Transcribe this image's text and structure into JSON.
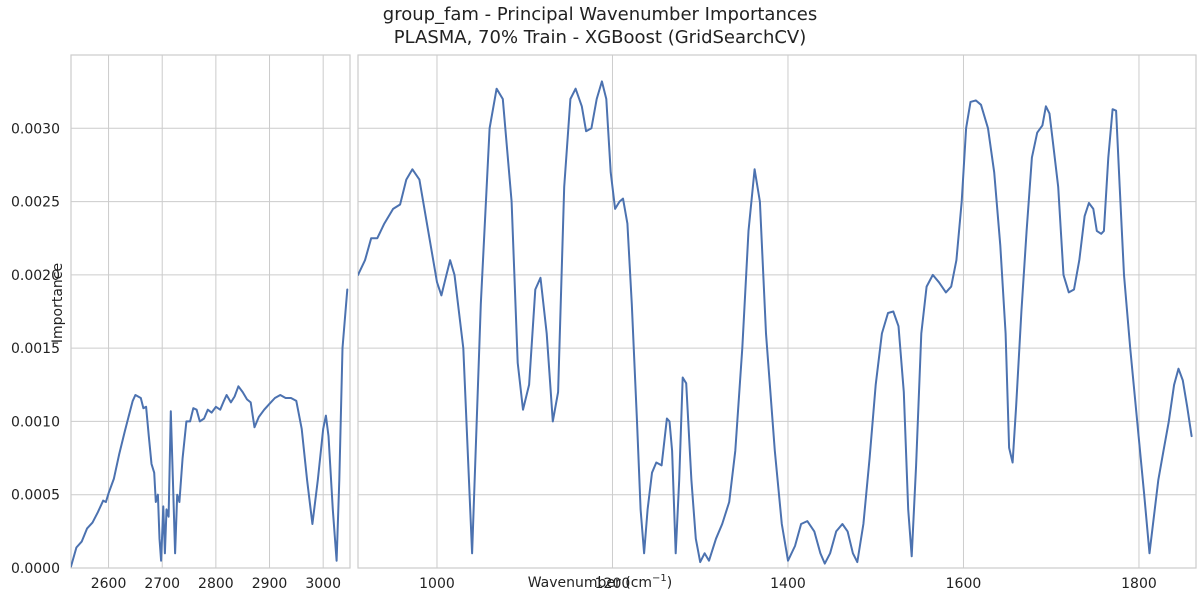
{
  "chart_data": {
    "type": "line",
    "title": "group_fam - Principal Wavenumber Importances",
    "subtitle": "PLASMA, 70% Train - XGBoost (GridSearchCV)",
    "xlabel": "Wavenumber (cm",
    "xlabel_sup": "−1",
    "xlabel_close": ")",
    "ylabel": "Importance",
    "ylim": [
      0,
      0.0035
    ],
    "y_ticks": [
      "0.0000",
      "0.0005",
      "0.0010",
      "0.0015",
      "0.0020",
      "0.0025",
      "0.0030"
    ],
    "grid": true,
    "line_color": "#4c72b0",
    "panels": [
      {
        "xlim": [
          2530,
          3050
        ],
        "x_ticks": [
          2600,
          2700,
          2800,
          2900,
          3000
        ],
        "points": [
          [
            2530,
            1e-05
          ],
          [
            2540,
            0.00014
          ],
          [
            2550,
            0.00018
          ],
          [
            2560,
            0.00027
          ],
          [
            2570,
            0.00031
          ],
          [
            2580,
            0.00038
          ],
          [
            2590,
            0.00046
          ],
          [
            2595,
            0.00045
          ],
          [
            2600,
            0.00051
          ],
          [
            2610,
            0.00061
          ],
          [
            2620,
            0.00078
          ],
          [
            2630,
            0.00093
          ],
          [
            2640,
            0.00107
          ],
          [
            2645,
            0.00114
          ],
          [
            2650,
            0.00118
          ],
          [
            2655,
            0.00117
          ],
          [
            2660,
            0.00116
          ],
          [
            2665,
            0.00109
          ],
          [
            2670,
            0.0011
          ],
          [
            2675,
            0.0009
          ],
          [
            2680,
            0.00071
          ],
          [
            2685,
            0.00065
          ],
          [
            2688,
            0.00045
          ],
          [
            2692,
            0.0005
          ],
          [
            2695,
            0.0002
          ],
          [
            2698,
            5e-05
          ],
          [
            2702,
            0.00042
          ],
          [
            2705,
            0.0001
          ],
          [
            2708,
            0.0004
          ],
          [
            2712,
            0.00035
          ],
          [
            2716,
            0.00107
          ],
          [
            2720,
            0.0006
          ],
          [
            2724,
            0.0001
          ],
          [
            2728,
            0.0005
          ],
          [
            2732,
            0.00045
          ],
          [
            2738,
            0.00075
          ],
          [
            2745,
            0.001
          ],
          [
            2752,
            0.001
          ],
          [
            2758,
            0.00109
          ],
          [
            2764,
            0.00108
          ],
          [
            2770,
            0.001
          ],
          [
            2778,
            0.00102
          ],
          [
            2785,
            0.00108
          ],
          [
            2792,
            0.00106
          ],
          [
            2800,
            0.0011
          ],
          [
            2808,
            0.00108
          ],
          [
            2815,
            0.00114
          ],
          [
            2820,
            0.00118
          ],
          [
            2828,
            0.00113
          ],
          [
            2835,
            0.00117
          ],
          [
            2842,
            0.00124
          ],
          [
            2850,
            0.0012
          ],
          [
            2858,
            0.00115
          ],
          [
            2865,
            0.00113
          ],
          [
            2872,
            0.00096
          ],
          [
            2880,
            0.00103
          ],
          [
            2890,
            0.00108
          ],
          [
            2900,
            0.00112
          ],
          [
            2910,
            0.00116
          ],
          [
            2920,
            0.00118
          ],
          [
            2930,
            0.00116
          ],
          [
            2940,
            0.00116
          ],
          [
            2950,
            0.00114
          ],
          [
            2960,
            0.00095
          ],
          [
            2970,
            0.0006
          ],
          [
            2980,
            0.0003
          ],
          [
            2990,
            0.0006
          ],
          [
            3000,
            0.00095
          ],
          [
            3005,
            0.00104
          ],
          [
            3010,
            0.0009
          ],
          [
            3018,
            0.0004
          ],
          [
            3025,
            5e-05
          ],
          [
            3030,
            0.0006
          ],
          [
            3036,
            0.0015
          ],
          [
            3045,
            0.0019
          ]
        ]
      },
      {
        "xlim": [
          910,
          1865
        ],
        "x_ticks": [
          1000,
          1200,
          1400,
          1600,
          1800
        ],
        "points": [
          [
            910,
            0.002
          ],
          [
            918,
            0.0021
          ],
          [
            925,
            0.00225
          ],
          [
            932,
            0.00225
          ],
          [
            940,
            0.00235
          ],
          [
            950,
            0.00245
          ],
          [
            958,
            0.00248
          ],
          [
            965,
            0.00265
          ],
          [
            972,
            0.00272
          ],
          [
            980,
            0.00265
          ],
          [
            990,
            0.0023
          ],
          [
            1000,
            0.00195
          ],
          [
            1005,
            0.00186
          ],
          [
            1010,
            0.00198
          ],
          [
            1015,
            0.0021
          ],
          [
            1020,
            0.002
          ],
          [
            1030,
            0.0015
          ],
          [
            1040,
            0.0001
          ],
          [
            1050,
            0.0018
          ],
          [
            1060,
            0.003
          ],
          [
            1068,
            0.00327
          ],
          [
            1075,
            0.0032
          ],
          [
            1085,
            0.0025
          ],
          [
            1092,
            0.0014
          ],
          [
            1098,
            0.00108
          ],
          [
            1105,
            0.00125
          ],
          [
            1112,
            0.0019
          ],
          [
            1118,
            0.00198
          ],
          [
            1125,
            0.0016
          ],
          [
            1132,
            0.001
          ],
          [
            1138,
            0.0012
          ],
          [
            1145,
            0.0026
          ],
          [
            1152,
            0.0032
          ],
          [
            1158,
            0.00327
          ],
          [
            1165,
            0.00315
          ],
          [
            1170,
            0.00298
          ],
          [
            1176,
            0.003
          ],
          [
            1182,
            0.0032
          ],
          [
            1188,
            0.00332
          ],
          [
            1193,
            0.0032
          ],
          [
            1198,
            0.0027
          ],
          [
            1203,
            0.00245
          ],
          [
            1208,
            0.0025
          ],
          [
            1212,
            0.00252
          ],
          [
            1217,
            0.00235
          ],
          [
            1222,
            0.0018
          ],
          [
            1228,
            0.001
          ],
          [
            1232,
            0.0004
          ],
          [
            1236,
            0.0001
          ],
          [
            1240,
            0.0004
          ],
          [
            1245,
            0.00065
          ],
          [
            1250,
            0.00072
          ],
          [
            1256,
            0.0007
          ],
          [
            1262,
            0.00102
          ],
          [
            1265,
            0.001
          ],
          [
            1268,
            0.0008
          ],
          [
            1272,
            0.0001
          ],
          [
            1276,
            0.0006
          ],
          [
            1280,
            0.0013
          ],
          [
            1284,
            0.00126
          ],
          [
            1290,
            0.0006
          ],
          [
            1295,
            0.0002
          ],
          [
            1300,
            4e-05
          ],
          [
            1305,
            0.0001
          ],
          [
            1310,
            5e-05
          ],
          [
            1318,
            0.0002
          ],
          [
            1325,
            0.0003
          ],
          [
            1333,
            0.00045
          ],
          [
            1340,
            0.0008
          ],
          [
            1348,
            0.0015
          ],
          [
            1355,
            0.0023
          ],
          [
            1362,
            0.00272
          ],
          [
            1368,
            0.0025
          ],
          [
            1375,
            0.0016
          ],
          [
            1385,
            0.0008
          ],
          [
            1393,
            0.0003
          ],
          [
            1400,
            5e-05
          ],
          [
            1408,
            0.00015
          ],
          [
            1415,
            0.0003
          ],
          [
            1422,
            0.00032
          ],
          [
            1430,
            0.00025
          ],
          [
            1437,
            0.0001
          ],
          [
            1442,
            3e-05
          ],
          [
            1448,
            0.0001
          ],
          [
            1455,
            0.00025
          ],
          [
            1462,
            0.0003
          ],
          [
            1468,
            0.00025
          ],
          [
            1474,
            0.0001
          ],
          [
            1479,
            4e-05
          ],
          [
            1486,
            0.0003
          ],
          [
            1493,
            0.00075
          ],
          [
            1500,
            0.00125
          ],
          [
            1507,
            0.0016
          ],
          [
            1514,
            0.00174
          ],
          [
            1520,
            0.00175
          ],
          [
            1526,
            0.00165
          ],
          [
            1532,
            0.0012
          ],
          [
            1537,
            0.0004
          ],
          [
            1541,
            8e-05
          ],
          [
            1546,
            0.0007
          ],
          [
            1552,
            0.0016
          ],
          [
            1558,
            0.00192
          ],
          [
            1565,
            0.002
          ],
          [
            1572,
            0.00195
          ],
          [
            1580,
            0.00188
          ],
          [
            1586,
            0.00192
          ],
          [
            1592,
            0.0021
          ],
          [
            1598,
            0.0025
          ],
          [
            1603,
            0.003
          ],
          [
            1608,
            0.00318
          ],
          [
            1614,
            0.00319
          ],
          [
            1620,
            0.00316
          ],
          [
            1628,
            0.003
          ],
          [
            1635,
            0.0027
          ],
          [
            1642,
            0.0022
          ],
          [
            1648,
            0.0016
          ],
          [
            1652,
            0.00082
          ],
          [
            1656,
            0.00072
          ],
          [
            1660,
            0.0011
          ],
          [
            1666,
            0.00175
          ],
          [
            1672,
            0.0023
          ],
          [
            1678,
            0.0028
          ],
          [
            1684,
            0.00297
          ],
          [
            1690,
            0.00302
          ],
          [
            1694,
            0.00315
          ],
          [
            1698,
            0.0031
          ],
          [
            1702,
            0.0029
          ],
          [
            1708,
            0.0026
          ],
          [
            1714,
            0.002
          ],
          [
            1720,
            0.00188
          ],
          [
            1726,
            0.0019
          ],
          [
            1732,
            0.0021
          ],
          [
            1738,
            0.0024
          ],
          [
            1743,
            0.00249
          ],
          [
            1748,
            0.00245
          ],
          [
            1752,
            0.0023
          ],
          [
            1757,
            0.00228
          ],
          [
            1760,
            0.0023
          ],
          [
            1765,
            0.0028
          ],
          [
            1770,
            0.00313
          ],
          [
            1774,
            0.00312
          ],
          [
            1778,
            0.0026
          ],
          [
            1783,
            0.002
          ],
          [
            1790,
            0.0015
          ],
          [
            1798,
            0.001
          ],
          [
            1806,
            0.0005
          ],
          [
            1812,
            0.0001
          ],
          [
            1816,
            0.0003
          ],
          [
            1822,
            0.0006
          ],
          [
            1828,
            0.0008
          ],
          [
            1834,
            0.001
          ],
          [
            1840,
            0.00125
          ],
          [
            1845,
            0.00136
          ],
          [
            1850,
            0.00128
          ],
          [
            1855,
            0.0011
          ],
          [
            1860,
            0.0009
          ]
        ]
      }
    ]
  }
}
